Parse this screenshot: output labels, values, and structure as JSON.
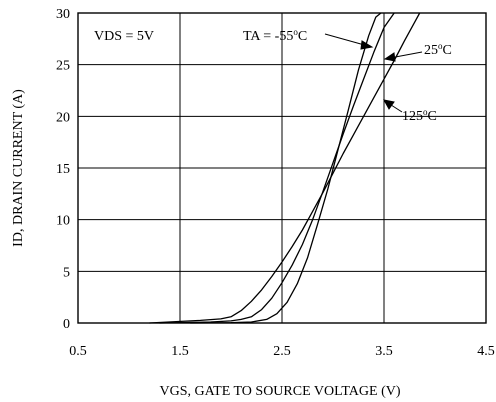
{
  "chart_data": {
    "type": "line",
    "title": "",
    "xlabel": "VGS, GATE TO SOURCE VOLTAGE (V)",
    "ylabel": "ID, DRAIN CURRENT (A)",
    "xlim": [
      0.5,
      4.5
    ],
    "ylim": [
      0,
      30
    ],
    "x_ticks": [
      "0.5",
      "1.5",
      "2.5",
      "3.5",
      "4.5"
    ],
    "y_ticks": [
      "0",
      "5",
      "10",
      "15",
      "20",
      "25",
      "30"
    ],
    "grid": true,
    "annotations": {
      "condition": "VDS = 5V",
      "label_cold": "TA = -55",
      "label_room": "25",
      "label_hot": "125",
      "degree_unit": "C",
      "degree_sup": "o"
    },
    "series": [
      {
        "name": "TA = -55°C",
        "x": [
          1.6,
          2.0,
          2.2,
          2.35,
          2.45,
          2.55,
          2.65,
          2.75,
          2.85,
          2.95,
          3.05,
          3.15,
          3.25,
          3.35,
          3.42,
          3.47
        ],
        "y": [
          0,
          0.03,
          0.1,
          0.35,
          0.9,
          2.0,
          3.8,
          6.3,
          9.6,
          13.0,
          16.8,
          20.6,
          24.5,
          27.8,
          29.6,
          30.0
        ]
      },
      {
        "name": "25°C",
        "x": [
          1.3,
          1.8,
          2.0,
          2.1,
          2.2,
          2.3,
          2.4,
          2.5,
          2.6,
          2.7,
          2.8,
          2.9,
          3.0,
          3.1,
          3.2,
          3.3,
          3.4,
          3.5,
          3.6
        ],
        "y": [
          0,
          0.1,
          0.2,
          0.35,
          0.6,
          1.3,
          2.4,
          3.9,
          5.6,
          7.6,
          10.0,
          12.7,
          15.5,
          18.3,
          21.0,
          23.6,
          26.2,
          28.6,
          30.0
        ]
      },
      {
        "name": "125°C",
        "x": [
          1.2,
          1.7,
          1.9,
          2.0,
          2.1,
          2.2,
          2.3,
          2.4,
          2.5,
          2.6,
          2.7,
          2.8,
          2.9,
          3.0,
          3.1,
          3.2,
          3.3,
          3.4,
          3.5,
          3.6,
          3.7,
          3.8,
          3.85
        ],
        "y": [
          0,
          0.25,
          0.4,
          0.6,
          1.2,
          2.1,
          3.2,
          4.5,
          5.9,
          7.4,
          9.0,
          10.8,
          12.6,
          14.5,
          16.4,
          18.2,
          20.0,
          21.8,
          23.6,
          25.4,
          27.3,
          29.1,
          30.0
        ]
      }
    ]
  }
}
